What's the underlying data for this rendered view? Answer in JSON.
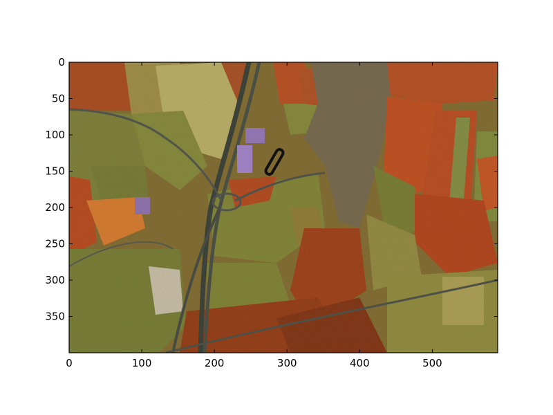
{
  "image": {
    "description_icon": "false-color-aerial-landscape",
    "palette": {
      "field_red": "#b8431c",
      "field_dark_red": "#8a2a0e",
      "field_green": "#6f7a33",
      "field_olive": "#7f8a3c",
      "field_pale": "#b8b56a",
      "field_orange": "#d2661f",
      "road": "#4a4f44",
      "building_purple": "#8a6fa8",
      "town": "#6e6a55"
    }
  },
  "axes": {
    "xticks": [
      "0",
      "100",
      "200",
      "300",
      "400",
      "500"
    ],
    "yticks": [
      "0",
      "50",
      "100",
      "150",
      "200",
      "250",
      "300",
      "350"
    ],
    "xlim": [
      0,
      590
    ],
    "ylim": [
      400,
      0
    ]
  }
}
